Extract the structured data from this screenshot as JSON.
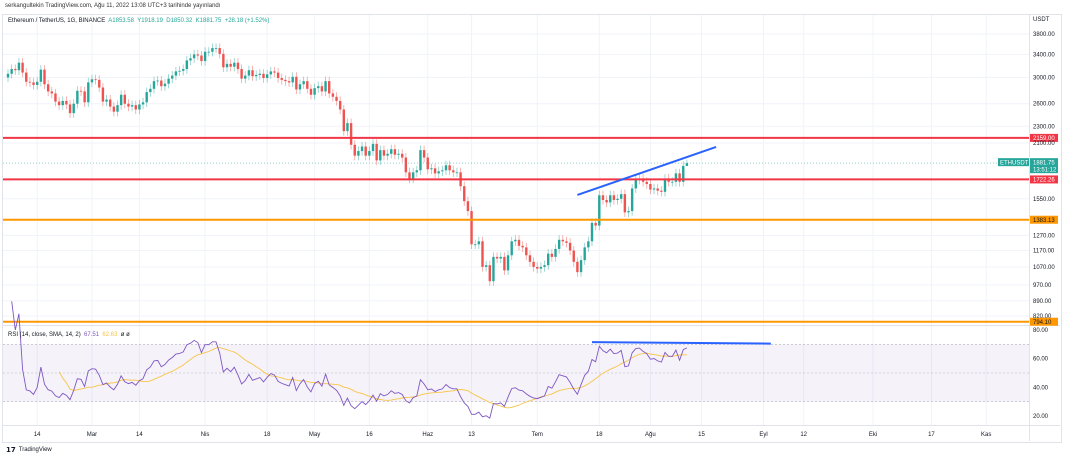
{
  "header": {
    "published": "serkangultekin TradingView.com, Ağu 11, 2022 13:08 UTC+3 tarihinde yayınlandı"
  },
  "legend": {
    "symbol": "Ethereum / TetherUS, 1G, BINANCE",
    "open": "A1853.58",
    "high": "Y1918.19",
    "low": "D1850.32",
    "close": "K1881.75",
    "change": "+28.18 (+1.52%)"
  },
  "rsi_legend": {
    "label": "RSI (14, close, SMA, 14, 2)",
    "rsi": "67.51",
    "sma": "62.63",
    "extra": "ø ø"
  },
  "price_axis": {
    "unit": "USDT",
    "ticks": [
      "3800.00",
      "3400.00",
      "3000.00",
      "2600.00",
      "2300.00",
      "2100.00",
      "1550.00",
      "1270.00",
      "1170.00",
      "1070.00",
      "970.00",
      "890.00",
      "820.00"
    ]
  },
  "rsi_axis": {
    "ticks": [
      "80.00",
      "60.00",
      "40.00",
      "20.00"
    ]
  },
  "badges": {
    "symbol": "ETHUSDT",
    "price": "1881.75",
    "countdown": "13:51:12"
  },
  "colors": {
    "up": "#26a69a",
    "down": "#ef5350",
    "resistance": "#f23645",
    "support": "#ff9800",
    "trendline": "#2962ff",
    "rsi": "#7e57c2",
    "rsi_sma": "#f7c547"
  },
  "footer": {
    "brand": "TradingView"
  },
  "chart_data": {
    "type": "candlestick",
    "scale": "log",
    "start_date": "2022-02-06",
    "closes": [
      3060,
      3140,
      3120,
      3250,
      3080,
      2930,
      2920,
      2880,
      2930,
      3130,
      2890,
      2780,
      2750,
      2630,
      2580,
      2640,
      2590,
      2470,
      2600,
      2790,
      2780,
      2620,
      2920,
      2970,
      2960,
      2840,
      2630,
      2660,
      2560,
      2490,
      2580,
      2730,
      2600,
      2560,
      2580,
      2520,
      2590,
      2620,
      2770,
      2820,
      2940,
      2950,
      2860,
      2900,
      2980,
      3030,
      3100,
      3110,
      3140,
      3290,
      3330,
      3400,
      3380,
      3280,
      3450,
      3450,
      3520,
      3520,
      3410,
      3170,
      3230,
      3180,
      3250,
      3140,
      2980,
      3030,
      3120,
      3020,
      3040,
      3060,
      2990,
      3050,
      3100,
      3080,
      2990,
      2960,
      2940,
      2920,
      3010,
      2810,
      2890,
      2940,
      2820,
      2730,
      2830,
      2860,
      2780,
      2940,
      2750,
      2700,
      2640,
      2520,
      2240,
      2340,
      2080,
      1960,
      2010,
      2060,
      1960,
      2010,
      2090,
      1910,
      2020,
      1960,
      1980,
      2030,
      1970,
      1980,
      1940,
      1790,
      1730,
      1790,
      1810,
      2020,
      1940,
      1820,
      1830,
      1780,
      1800,
      1810,
      1860,
      1810,
      1790,
      1790,
      1660,
      1530,
      1450,
      1210,
      1210,
      1230,
      1070,
      1080,
      990,
      1130,
      1120,
      1130,
      1050,
      1140,
      1230,
      1240,
      1200,
      1190,
      1140,
      1100,
      1070,
      1060,
      1070,
      1080,
      1150,
      1130,
      1180,
      1240,
      1230,
      1220,
      1170,
      1100,
      1040,
      1110,
      1190,
      1230,
      1360,
      1340,
      1580,
      1540,
      1520,
      1580,
      1540,
      1550,
      1590,
      1440,
      1450,
      1640,
      1720,
      1730,
      1700,
      1680,
      1630,
      1640,
      1620,
      1610,
      1730,
      1700,
      1700,
      1780,
      1700,
      1853.58,
      1881.75
    ],
    "last_open": 1853.58,
    "last_high": 1918.19,
    "last_low": 1850.32,
    "horizontal_levels": [
      {
        "price": 2159.0,
        "label": "2159.00",
        "color": "#f23645"
      },
      {
        "price": 1722.26,
        "label": "1722.26",
        "color": "#f23645"
      },
      {
        "price": 1383.13,
        "label": "1383.13",
        "color": "#ff9800"
      },
      {
        "price": 794.1,
        "label": "794.10",
        "color": "#ff9800"
      }
    ],
    "price_trendline": {
      "from": [
        "2022-07-12",
        1583
      ],
      "to": [
        "2022-08-19",
        2055
      ]
    },
    "rsi_trendline": {
      "from": [
        "2022-07-16",
        71.5
      ],
      "to": [
        "2022-09-03",
        70.5
      ]
    },
    "rsi_band": [
      30,
      70
    ],
    "rsi_midline": 50,
    "time_ticks": [
      [
        "2022-02-14",
        "14"
      ],
      [
        "2022-03-01",
        "Mar"
      ],
      [
        "2022-03-14",
        "14"
      ],
      [
        "2022-04-01",
        "Nis"
      ],
      [
        "2022-04-18",
        "18"
      ],
      [
        "2022-05-01",
        "May"
      ],
      [
        "2022-05-16",
        "16"
      ],
      [
        "2022-06-01",
        "Haz"
      ],
      [
        "2022-06-13",
        "13"
      ],
      [
        "2022-07-01",
        "Tem"
      ],
      [
        "2022-07-18",
        "18"
      ],
      [
        "2022-08-01",
        "Ağu"
      ],
      [
        "2022-08-15",
        "15"
      ],
      [
        "2022-09-01",
        "Eyl"
      ],
      [
        "2022-09-12",
        "12"
      ],
      [
        "2022-10-01",
        "Eki"
      ],
      [
        "2022-10-17",
        "17"
      ],
      [
        "2022-11-01",
        "Kas"
      ]
    ]
  }
}
